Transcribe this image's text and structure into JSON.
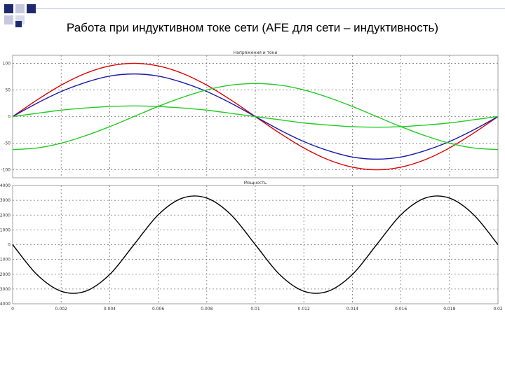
{
  "slide": {
    "title": "Работа при индуктивном токе сети (AFE для сети – индуктивность)"
  },
  "colors": {
    "deco_dark": "#1e2a6e",
    "deco_light": "#c5c9e0",
    "grid": "#777777",
    "frame": "#888888"
  },
  "chart_data": [
    {
      "type": "line",
      "title": "Напряжения и токи",
      "xlim": [
        0,
        0.02
      ],
      "ylim": [
        -115,
        115
      ],
      "yticks": [
        100,
        50,
        0,
        -50,
        -100
      ],
      "ytick_labels": [
        "100",
        "50",
        "0",
        "-50",
        "-100"
      ],
      "grid": true,
      "series": [
        {
          "color": "#dd0000",
          "values_x": [
            0,
            0.001,
            0.002,
            0.003,
            0.004,
            0.005,
            0.006,
            0.007,
            0.008,
            0.009,
            0.01,
            0.011,
            0.012,
            0.013,
            0.014,
            0.015,
            0.016,
            0.017,
            0.018,
            0.019,
            0.02
          ],
          "values_y": [
            0,
            31,
            59,
            81,
            95,
            100,
            95,
            81,
            59,
            31,
            0,
            -31,
            -59,
            -81,
            -95,
            -100,
            -95,
            -81,
            -59,
            -31,
            0
          ]
        },
        {
          "color": "#1a1aa8",
          "values_x": [
            0,
            0.001,
            0.002,
            0.003,
            0.004,
            0.005,
            0.006,
            0.007,
            0.008,
            0.009,
            0.01,
            0.011,
            0.012,
            0.013,
            0.014,
            0.015,
            0.016,
            0.017,
            0.018,
            0.019,
            0.02
          ],
          "values_y": [
            0,
            25,
            47,
            64,
            76,
            80,
            76,
            64,
            47,
            25,
            0,
            -25,
            -47,
            -64,
            -76,
            -80,
            -76,
            -64,
            -47,
            -25,
            0
          ]
        },
        {
          "color": "#22cc22",
          "values_x": [
            0,
            0.001,
            0.002,
            0.003,
            0.004,
            0.005,
            0.006,
            0.007,
            0.008,
            0.009,
            0.01,
            0.011,
            0.012,
            0.013,
            0.014,
            0.015,
            0.016,
            0.017,
            0.018,
            0.019,
            0.02
          ],
          "values_y": [
            0,
            6,
            12,
            16,
            19,
            20,
            19,
            16,
            12,
            6,
            0,
            -6,
            -12,
            -16,
            -19,
            -20,
            -19,
            -16,
            -12,
            -6,
            0
          ]
        },
        {
          "color": "#22cc22",
          "values_x": [
            0,
            0.001,
            0.002,
            0.003,
            0.004,
            0.005,
            0.006,
            0.007,
            0.008,
            0.009,
            0.01,
            0.011,
            0.012,
            0.013,
            0.014,
            0.015,
            0.016,
            0.017,
            0.018,
            0.019,
            0.02
          ],
          "values_y": [
            -62,
            -59,
            -50,
            -36,
            -19,
            0,
            19,
            36,
            50,
            59,
            62,
            59,
            50,
            36,
            19,
            0,
            -19,
            -36,
            -50,
            -59,
            -62
          ]
        }
      ]
    },
    {
      "type": "line",
      "title": "Мощность",
      "xlim": [
        0,
        0.02
      ],
      "ylim": [
        -4000,
        4000
      ],
      "xticks": [
        0,
        0.002,
        0.004,
        0.006,
        0.008,
        0.01,
        0.012,
        0.014,
        0.016,
        0.018,
        0.02
      ],
      "xtick_labels": [
        "0",
        "0.002",
        "0.004",
        "0.006",
        "0.008",
        "0.01",
        "0.012",
        "0.014",
        "0.016",
        "0.018",
        "0.02"
      ],
      "yticks": [
        4000,
        3000,
        2000,
        1000,
        0,
        -1000,
        -2000,
        -3000,
        -4000
      ],
      "ytick_labels": [
        "4000",
        "3000",
        "2000",
        "1000",
        "0",
        "-1000",
        "-2000",
        "-3000",
        "-4000"
      ],
      "grid": true,
      "series": [
        {
          "color": "#000000",
          "values_x": [
            0,
            0.001,
            0.002,
            0.003,
            0.004,
            0.005,
            0.006,
            0.007,
            0.008,
            0.009,
            0.01,
            0.011,
            0.012,
            0.013,
            0.014,
            0.015,
            0.016,
            0.017,
            0.018,
            0.019,
            0.02
          ],
          "values_y": [
            0,
            -2020,
            -3150,
            -3150,
            -2020,
            0,
            2020,
            3150,
            3150,
            2020,
            0,
            -2020,
            -3150,
            -3150,
            -2020,
            0,
            2020,
            3150,
            3150,
            2020,
            0
          ]
        }
      ]
    }
  ]
}
